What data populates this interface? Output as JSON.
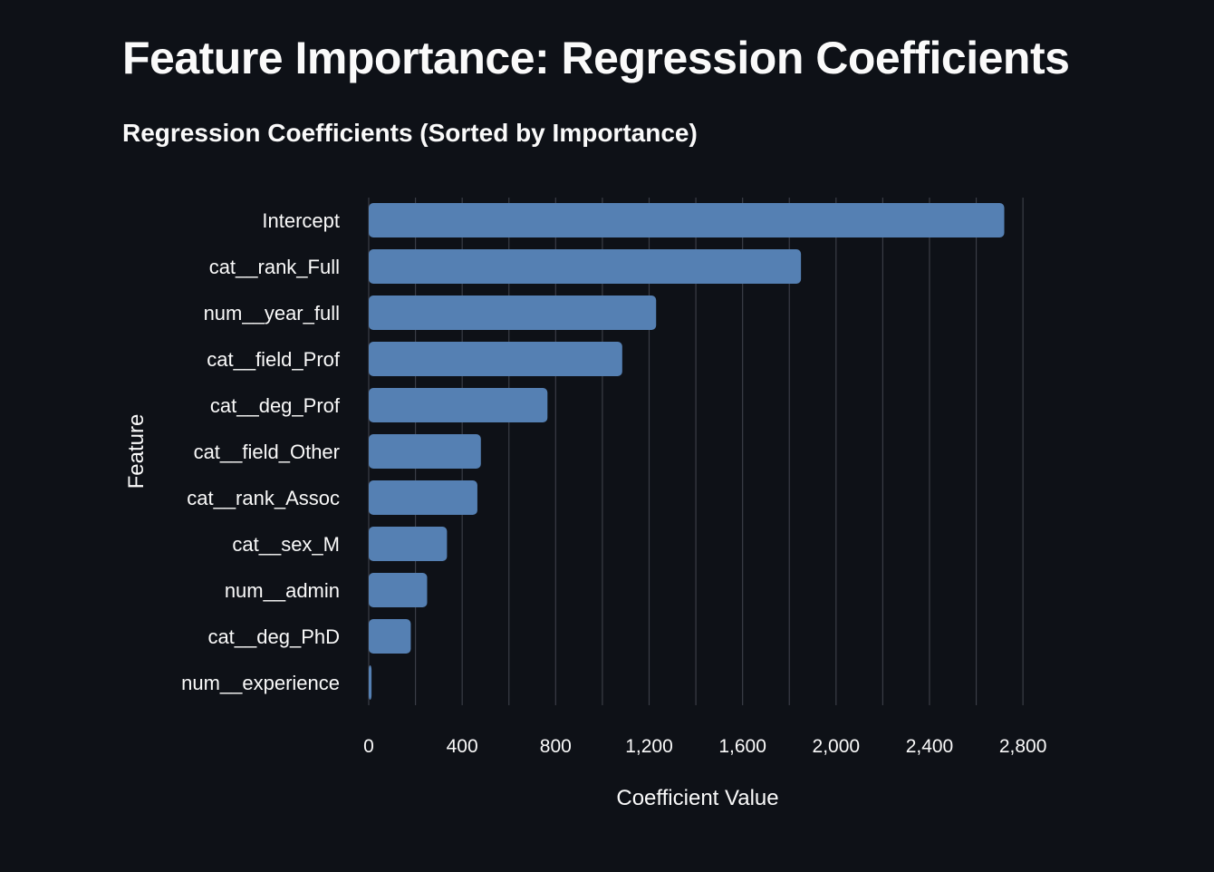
{
  "page": {
    "title": "Feature Importance: Regression Coefficients"
  },
  "chart_data": {
    "type": "bar",
    "orientation": "horizontal",
    "title": "Regression Coefficients (Sorted by Importance)",
    "xlabel": "Coefficient Value",
    "ylabel": "Feature",
    "categories": [
      "Intercept",
      "cat__rank_Full",
      "num__year_full",
      "cat__field_Prof",
      "cat__deg_Prof",
      "cat__field_Other",
      "cat__rank_Assoc",
      "cat__sex_M",
      "num__admin",
      "cat__deg_PhD",
      "num__experience"
    ],
    "values": [
      2720,
      1850,
      1230,
      1085,
      765,
      480,
      465,
      335,
      250,
      180,
      12
    ],
    "xlim": [
      0,
      2815
    ],
    "xticks": [
      0,
      400,
      800,
      1200,
      1600,
      2000,
      2400,
      2800
    ],
    "xtick_labels": [
      "0",
      "400",
      "800",
      "1,200",
      "1,600",
      "2,000",
      "2,400",
      "2,800"
    ],
    "grid": true,
    "bar_color": "#5580b3",
    "grid_color": "#3a3d46",
    "background": "#0e1117"
  }
}
